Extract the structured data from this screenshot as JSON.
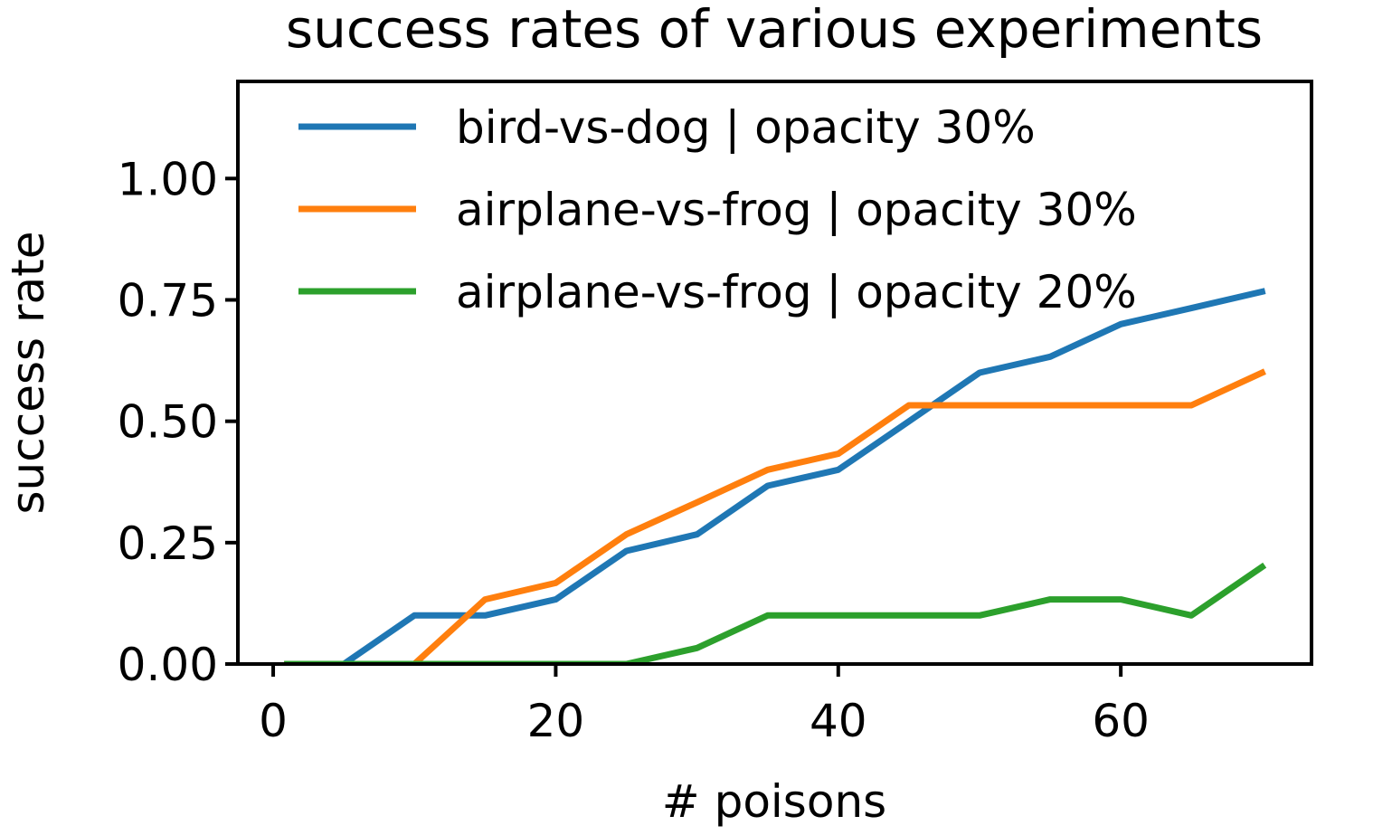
{
  "chart_data": {
    "type": "line",
    "title": "success rates of various experiments",
    "xlabel": "# poisons",
    "ylabel": "success rate",
    "xlim": [
      -2.5,
      73.5
    ],
    "ylim": [
      0,
      1.2
    ],
    "xticks": [
      0,
      20,
      40,
      60
    ],
    "xtick_labels": [
      "0",
      "20",
      "40",
      "60"
    ],
    "yticks": [
      0,
      0.25,
      0.5,
      0.75,
      1.0
    ],
    "ytick_labels": [
      "0.00",
      "0.25",
      "0.50",
      "0.75",
      "1.00"
    ],
    "grid": false,
    "legend_position": "top",
    "x": [
      1,
      5,
      10,
      15,
      20,
      25,
      30,
      35,
      40,
      45,
      50,
      55,
      60,
      65,
      70
    ],
    "series": [
      {
        "name": "bird-vs-dog | opacity 30%",
        "color": "#1f77b4",
        "values": [
          0,
          0,
          0.1,
          0.1,
          0.133,
          0.233,
          0.267,
          0.367,
          0.4,
          0.5,
          0.6,
          0.633,
          0.7,
          0.733,
          0.767
        ]
      },
      {
        "name": "airplane-vs-frog | opacity 30%",
        "color": "#ff7f0e",
        "values": [
          0,
          0,
          0,
          0.133,
          0.167,
          0.267,
          0.333,
          0.4,
          0.433,
          0.533,
          0.533,
          0.533,
          0.533,
          0.533,
          0.6
        ]
      },
      {
        "name": "airplane-vs-frog | opacity 20%",
        "color": "#2ca02c",
        "values": [
          0,
          0,
          0,
          0,
          0,
          0,
          0.033,
          0.1,
          0.1,
          0.1,
          0.1,
          0.133,
          0.133,
          0.1,
          0.2
        ]
      }
    ]
  }
}
